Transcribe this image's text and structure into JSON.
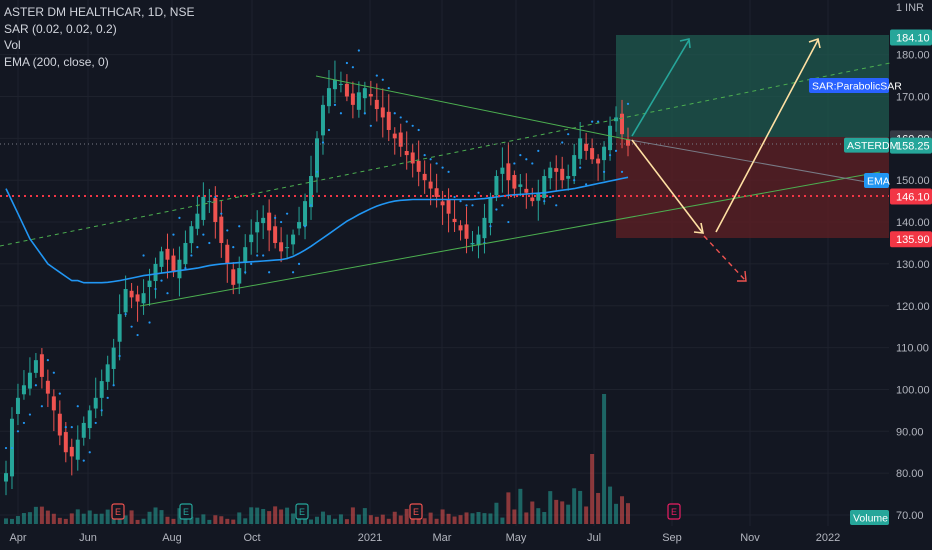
{
  "legend": {
    "symbol": "ASTER DM HEALTHCAR, 1D, NSE",
    "indicator_sar": "SAR (0.02, 0.02, 0.2)",
    "indicator_vol": "Vol",
    "indicator_ema": "EMA (200, close, 0)"
  },
  "currency": "INR",
  "currency_top": "1",
  "colors": {
    "background": "#131722",
    "up": "#26a69a",
    "down": "#ef5350",
    "ema": "#2196f3",
    "sar": "#2196f3",
    "profit_zone": "#1f5a4f",
    "loss_zone": "#5b1f24",
    "arrow_up": "#26a69a",
    "arrow_yellow": "#ffe0a3",
    "level_line": "#f23645",
    "trend_line": "#4caf50",
    "grid": "#1e222d"
  },
  "chart_data": {
    "type": "candlestick",
    "ylim": [
      68,
      195
    ],
    "y_ticks": [
      70,
      80,
      90,
      100,
      110,
      120,
      130,
      140,
      150,
      160,
      170,
      180
    ],
    "x_ticks": [
      "Apr",
      "Jun",
      "Aug",
      "Oct",
      "2021",
      "Mar",
      "May",
      "Jul",
      "Sep",
      "Nov",
      "2022"
    ],
    "price_labels": {
      "target_high": "184.10",
      "stop_level": "160.00",
      "last_price": "158.25",
      "last_price_tag": "ASTERDM",
      "support_level": "146.10",
      "target_low": "135.90",
      "ema_tag": "EMA",
      "sar_tag": "SAR:ParabolicSAR",
      "volume_tag": "Volume"
    },
    "key_levels": {
      "target_high": 184.1,
      "stop_level": 160.0,
      "last_price": 158.25,
      "support_level": 146.1,
      "target_low": 135.9
    },
    "closes": [
      80,
      93,
      98,
      101,
      104,
      107,
      103,
      99,
      95,
      89,
      85,
      84,
      88,
      92,
      95,
      98,
      102,
      106,
      110,
      118,
      124,
      122,
      121,
      123,
      126,
      130,
      133,
      131,
      128,
      131,
      135,
      139,
      142,
      146,
      145,
      140,
      135,
      130,
      125,
      129,
      134,
      137,
      140,
      141,
      138,
      135,
      133,
      134,
      137,
      140,
      145,
      151,
      160,
      168,
      172,
      174,
      173,
      170,
      168,
      171,
      172,
      170,
      167,
      165,
      162,
      160,
      158,
      156,
      154,
      152,
      150,
      148,
      146,
      144,
      142,
      140,
      138,
      136,
      135,
      137,
      141,
      146,
      151,
      153,
      150,
      148,
      149,
      147,
      145,
      147,
      151,
      153,
      152,
      150,
      151,
      156,
      160,
      157,
      155,
      154,
      158,
      163,
      165,
      161,
      158.25
    ],
    "ema": [
      148,
      145,
      142,
      139,
      136,
      134,
      132,
      130,
      129,
      128,
      127,
      126,
      126,
      125.5,
      125.5,
      125.5,
      125.5,
      125.6,
      125.8,
      126,
      126.3,
      126.6,
      126.9,
      127.2,
      127.4,
      127.6,
      127.8,
      128,
      128.2,
      128.4,
      128.6,
      128.8,
      129,
      129.3,
      129.6,
      129.8,
      130,
      130.1,
      130.2,
      130.3,
      130.4,
      130.5,
      130.6,
      130.7,
      130.8,
      130.9,
      131,
      131.3,
      131.8,
      132.5,
      133.3,
      134.2,
      135.2,
      136.2,
      137.2,
      138.2,
      139.2,
      140.2,
      141,
      141.8,
      142.5,
      143.2,
      143.8,
      144.3,
      144.7,
      145,
      145.2,
      145.3,
      145.4,
      145.4,
      145.4,
      145.4,
      145.4,
      145.4,
      145.4,
      145.4,
      145.4,
      145.4,
      145.4,
      145.5,
      145.6,
      145.8,
      146,
      146.2,
      146.4,
      146.5,
      146.6,
      146.7,
      146.8,
      146.9,
      147,
      147.2,
      147.4,
      147.6,
      147.8,
      148,
      148.3,
      148.6,
      148.9,
      149.2,
      149.5,
      149.8,
      150.1,
      150.4,
      150.7
    ]
  }
}
